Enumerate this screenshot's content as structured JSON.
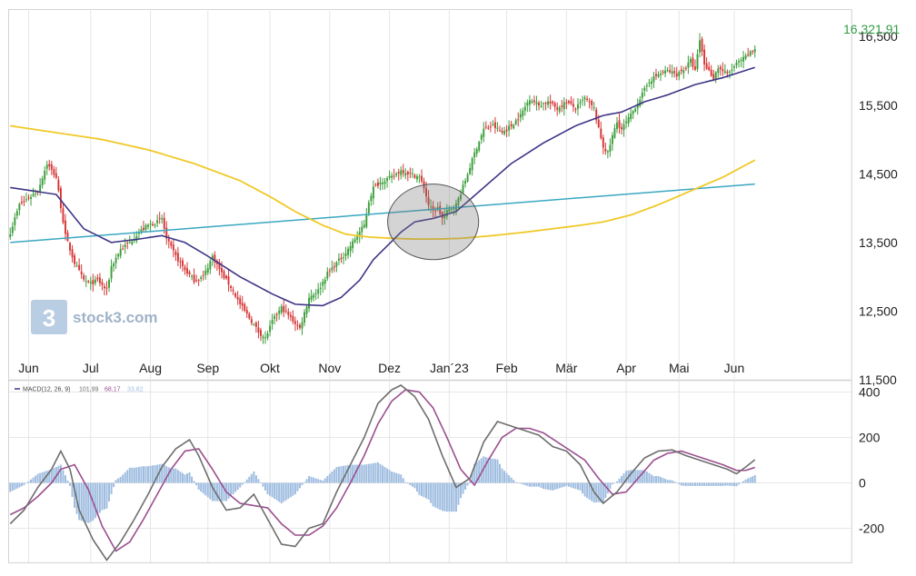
{
  "watermark": {
    "brand": "stock3.com"
  },
  "last_price_label": "16.321,91",
  "colors": {
    "up": "#3a9e3a",
    "down": "#d63535",
    "sma50": "#3d3686",
    "sma200": "#f0c928",
    "trend": "#3aa7c2",
    "macd": "#6e6e6e",
    "signal": "#9b4f8f",
    "hist": "#9fbde0",
    "grid": "#e6e6e6",
    "frame": "#d0d0d0",
    "lastPrice": "#2f9e44"
  },
  "chart_data": [
    {
      "type": "candlestick",
      "panel": "price",
      "y_ticks": [
        "16,500",
        "15,500",
        "14,500",
        "13,500",
        "12,500",
        "11,500"
      ],
      "y_tick_values": [
        16500,
        15500,
        14500,
        13500,
        12500,
        11500
      ],
      "ylim": [
        11500,
        16900
      ],
      "x_ticks": [
        "Jun",
        "Jul",
        "Aug",
        "Sep",
        "Okt",
        "Nov",
        "Dez",
        "Jan´23",
        "Feb",
        "Mär",
        "Apr",
        "Mai",
        "Jun"
      ],
      "x_tick_idx": [
        8,
        35,
        61,
        86,
        113,
        139,
        165,
        191,
        216,
        242,
        268,
        291,
        315
      ],
      "last_price": 16321.91,
      "close_anchors": [
        [
          0,
          13650
        ],
        [
          4,
          14050
        ],
        [
          8,
          14150
        ],
        [
          12,
          14250
        ],
        [
          16,
          14650
        ],
        [
          20,
          14450
        ],
        [
          24,
          13600
        ],
        [
          28,
          13200
        ],
        [
          32,
          12950
        ],
        [
          35,
          12900
        ],
        [
          38,
          12950
        ],
        [
          42,
          12800
        ],
        [
          44,
          13150
        ],
        [
          48,
          13400
        ],
        [
          52,
          13500
        ],
        [
          56,
          13650
        ],
        [
          60,
          13750
        ],
        [
          64,
          13800
        ],
        [
          66,
          13850
        ],
        [
          68,
          13550
        ],
        [
          72,
          13300
        ],
        [
          76,
          13100
        ],
        [
          80,
          12950
        ],
        [
          84,
          13000
        ],
        [
          88,
          13300
        ],
        [
          92,
          13050
        ],
        [
          96,
          12850
        ],
        [
          100,
          12600
        ],
        [
          104,
          12400
        ],
        [
          108,
          12200
        ],
        [
          111,
          12100
        ],
        [
          114,
          12350
        ],
        [
          118,
          12550
        ],
        [
          122,
          12400
        ],
        [
          126,
          12250
        ],
        [
          130,
          12700
        ],
        [
          134,
          12800
        ],
        [
          138,
          13050
        ],
        [
          142,
          13200
        ],
        [
          146,
          13350
        ],
        [
          150,
          13550
        ],
        [
          154,
          13750
        ],
        [
          156,
          14100
        ],
        [
          158,
          14300
        ],
        [
          162,
          14400
        ],
        [
          166,
          14450
        ],
        [
          170,
          14550
        ],
        [
          174,
          14500
        ],
        [
          178,
          14450
        ],
        [
          180,
          14300
        ],
        [
          182,
          14050
        ],
        [
          184,
          13950
        ],
        [
          186,
          14000
        ],
        [
          188,
          13850
        ],
        [
          190,
          13950
        ],
        [
          194,
          14050
        ],
        [
          198,
          14400
        ],
        [
          202,
          14800
        ],
        [
          206,
          15150
        ],
        [
          210,
          15200
        ],
        [
          214,
          15100
        ],
        [
          218,
          15200
        ],
        [
          222,
          15350
        ],
        [
          226,
          15600
        ],
        [
          230,
          15500
        ],
        [
          234,
          15550
        ],
        [
          238,
          15450
        ],
        [
          242,
          15550
        ],
        [
          246,
          15450
        ],
        [
          250,
          15600
        ],
        [
          254,
          15450
        ],
        [
          256,
          15150
        ],
        [
          258,
          14900
        ],
        [
          260,
          14800
        ],
        [
          262,
          15050
        ],
        [
          264,
          15250
        ],
        [
          266,
          15150
        ],
        [
          270,
          15350
        ],
        [
          274,
          15600
        ],
        [
          278,
          15850
        ],
        [
          282,
          15950
        ],
        [
          286,
          16000
        ],
        [
          290,
          15950
        ],
        [
          294,
          16050
        ],
        [
          296,
          16150
        ],
        [
          298,
          16000
        ],
        [
          300,
          16450
        ],
        [
          302,
          16100
        ],
        [
          304,
          16000
        ],
        [
          306,
          15900
        ],
        [
          308,
          16050
        ],
        [
          312,
          15950
        ],
        [
          316,
          16100
        ],
        [
          320,
          16200
        ],
        [
          324,
          16321.91
        ]
      ],
      "sma50_anchors": [
        [
          0,
          14300
        ],
        [
          20,
          14200
        ],
        [
          32,
          13700
        ],
        [
          44,
          13500
        ],
        [
          56,
          13550
        ],
        [
          66,
          13600
        ],
        [
          76,
          13500
        ],
        [
          86,
          13300
        ],
        [
          100,
          13000
        ],
        [
          114,
          12750
        ],
        [
          124,
          12600
        ],
        [
          136,
          12580
        ],
        [
          144,
          12700
        ],
        [
          152,
          12950
        ],
        [
          158,
          13250
        ],
        [
          164,
          13450
        ],
        [
          170,
          13650
        ],
        [
          176,
          13800
        ],
        [
          184,
          13850
        ],
        [
          194,
          13950
        ],
        [
          206,
          14300
        ],
        [
          218,
          14650
        ],
        [
          232,
          14950
        ],
        [
          246,
          15200
        ],
        [
          258,
          15350
        ],
        [
          266,
          15400
        ],
        [
          276,
          15550
        ],
        [
          286,
          15650
        ],
        [
          298,
          15800
        ],
        [
          310,
          15900
        ],
        [
          324,
          16050
        ]
      ],
      "sma200_anchors": [
        [
          0,
          15200
        ],
        [
          20,
          15100
        ],
        [
          40,
          15000
        ],
        [
          60,
          14850
        ],
        [
          80,
          14650
        ],
        [
          100,
          14400
        ],
        [
          114,
          14150
        ],
        [
          124,
          13950
        ],
        [
          136,
          13750
        ],
        [
          146,
          13620
        ],
        [
          156,
          13580
        ],
        [
          166,
          13560
        ],
        [
          176,
          13550
        ],
        [
          186,
          13550
        ],
        [
          196,
          13560
        ],
        [
          210,
          13600
        ],
        [
          224,
          13650
        ],
        [
          236,
          13700
        ],
        [
          248,
          13750
        ],
        [
          258,
          13800
        ],
        [
          270,
          13900
        ],
        [
          282,
          14050
        ],
        [
          296,
          14250
        ],
        [
          310,
          14450
        ],
        [
          324,
          14700
        ]
      ],
      "trendline": {
        "start": [
          0,
          13500
        ],
        "end": [
          324,
          14350
        ]
      },
      "highlight_ellipse": {
        "center": [
          184,
          13800
        ],
        "rx_bars": 9,
        "ry_value": 550
      }
    },
    {
      "type": "line",
      "panel": "MACD",
      "legend": {
        "label": "MACD(12, 26, 9)",
        "values": [
          "101,99",
          "68,17",
          "33,82"
        ]
      },
      "y_ticks": [
        "400",
        "200",
        "0",
        "-200"
      ],
      "y_tick_values": [
        400,
        200,
        0,
        -200
      ],
      "ylim": [
        -350,
        450
      ],
      "macd_anchors": [
        [
          0,
          -180
        ],
        [
          6,
          -120
        ],
        [
          12,
          -20
        ],
        [
          18,
          60
        ],
        [
          22,
          140
        ],
        [
          26,
          60
        ],
        [
          30,
          -120
        ],
        [
          36,
          -250
        ],
        [
          42,
          -340
        ],
        [
          48,
          -260
        ],
        [
          54,
          -160
        ],
        [
          60,
          -50
        ],
        [
          66,
          70
        ],
        [
          72,
          150
        ],
        [
          78,
          190
        ],
        [
          82,
          120
        ],
        [
          88,
          -20
        ],
        [
          94,
          -120
        ],
        [
          100,
          -110
        ],
        [
          106,
          -50
        ],
        [
          112,
          -160
        ],
        [
          118,
          -270
        ],
        [
          124,
          -280
        ],
        [
          130,
          -200
        ],
        [
          136,
          -180
        ],
        [
          142,
          -40
        ],
        [
          148,
          80
        ],
        [
          154,
          200
        ],
        [
          160,
          350
        ],
        [
          166,
          410
        ],
        [
          170,
          430
        ],
        [
          176,
          380
        ],
        [
          182,
          280
        ],
        [
          188,
          120
        ],
        [
          194,
          -20
        ],
        [
          200,
          20
        ],
        [
          206,
          180
        ],
        [
          212,
          270
        ],
        [
          218,
          250
        ],
        [
          224,
          230
        ],
        [
          230,
          210
        ],
        [
          236,
          160
        ],
        [
          242,
          140
        ],
        [
          248,
          80
        ],
        [
          254,
          -40
        ],
        [
          258,
          -90
        ],
        [
          264,
          -40
        ],
        [
          270,
          40
        ],
        [
          276,
          110
        ],
        [
          282,
          140
        ],
        [
          288,
          145
        ],
        [
          294,
          120
        ],
        [
          300,
          100
        ],
        [
          306,
          80
        ],
        [
          312,
          60
        ],
        [
          316,
          40
        ],
        [
          320,
          70
        ],
        [
          324,
          102
        ]
      ],
      "signal_anchors": [
        [
          0,
          -140
        ],
        [
          6,
          -110
        ],
        [
          12,
          -60
        ],
        [
          18,
          0
        ],
        [
          22,
          60
        ],
        [
          28,
          80
        ],
        [
          34,
          -30
        ],
        [
          40,
          -190
        ],
        [
          46,
          -300
        ],
        [
          52,
          -260
        ],
        [
          58,
          -160
        ],
        [
          64,
          -50
        ],
        [
          70,
          60
        ],
        [
          76,
          140
        ],
        [
          82,
          150
        ],
        [
          88,
          60
        ],
        [
          94,
          -40
        ],
        [
          100,
          -90
        ],
        [
          106,
          -100
        ],
        [
          112,
          -110
        ],
        [
          118,
          -180
        ],
        [
          124,
          -230
        ],
        [
          130,
          -230
        ],
        [
          136,
          -190
        ],
        [
          142,
          -110
        ],
        [
          148,
          0
        ],
        [
          154,
          120
        ],
        [
          160,
          260
        ],
        [
          166,
          360
        ],
        [
          172,
          410
        ],
        [
          178,
          400
        ],
        [
          184,
          330
        ],
        [
          190,
          200
        ],
        [
          196,
          60
        ],
        [
          202,
          -10
        ],
        [
          208,
          100
        ],
        [
          214,
          200
        ],
        [
          220,
          240
        ],
        [
          226,
          240
        ],
        [
          232,
          220
        ],
        [
          238,
          180
        ],
        [
          244,
          140
        ],
        [
          250,
          100
        ],
        [
          256,
          20
        ],
        [
          262,
          -50
        ],
        [
          268,
          -40
        ],
        [
          274,
          30
        ],
        [
          280,
          100
        ],
        [
          286,
          130
        ],
        [
          292,
          140
        ],
        [
          298,
          120
        ],
        [
          304,
          100
        ],
        [
          310,
          80
        ],
        [
          316,
          55
        ],
        [
          320,
          55
        ],
        [
          324,
          68
        ]
      ],
      "price_panel_range": [
        "Jun",
        "Jun"
      ]
    }
  ]
}
